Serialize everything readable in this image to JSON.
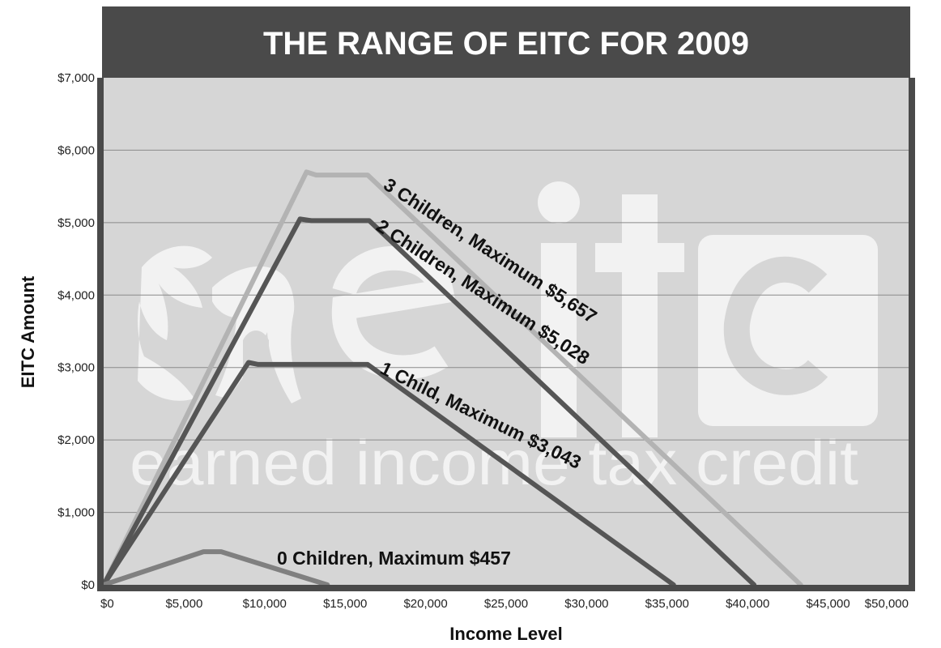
{
  "chart_data": {
    "type": "line",
    "title": "THE RANGE OF EITC FOR 2009",
    "xlabel": "Income Level",
    "ylabel": "EITC Amount",
    "xlim": [
      0,
      50000
    ],
    "ylim": [
      0,
      7000
    ],
    "x_ticks": [
      "$0",
      "$5,000",
      "$10,000",
      "$15,000",
      "$20,000",
      "$25,000",
      "$30,000",
      "$35,000",
      "$40,000",
      "$45,000",
      "$50,000"
    ],
    "y_ticks": [
      "$0",
      "$1,000",
      "$2,000",
      "$3,000",
      "$4,000",
      "$5,000",
      "$6,000",
      "$7,000"
    ],
    "grid": true,
    "watermark": {
      "logo": "eitc",
      "tagline": "earned income tax credit"
    },
    "series": [
      {
        "name": "3 Children, Maximum $5,657",
        "color": "#b3b3b3",
        "points": [
          [
            0,
            0
          ],
          [
            12600,
            5700
          ],
          [
            13200,
            5657
          ],
          [
            16400,
            5657
          ],
          [
            43300,
            0
          ]
        ]
      },
      {
        "name": "2 Children, Maximum $5,028",
        "color": "#555555",
        "points": [
          [
            0,
            0
          ],
          [
            12200,
            5050
          ],
          [
            12900,
            5028
          ],
          [
            16500,
            5028
          ],
          [
            40400,
            0
          ]
        ]
      },
      {
        "name": "1 Child, Maximum $3,043",
        "color": "#555555",
        "points": [
          [
            0,
            0
          ],
          [
            9000,
            3070
          ],
          [
            9600,
            3043
          ],
          [
            16400,
            3043
          ],
          [
            35400,
            0
          ]
        ]
      },
      {
        "name": "0 Children, Maximum $457",
        "color": "#808080",
        "points": [
          [
            0,
            0
          ],
          [
            6200,
            457
          ],
          [
            7300,
            457
          ],
          [
            13900,
            0
          ]
        ]
      }
    ]
  }
}
